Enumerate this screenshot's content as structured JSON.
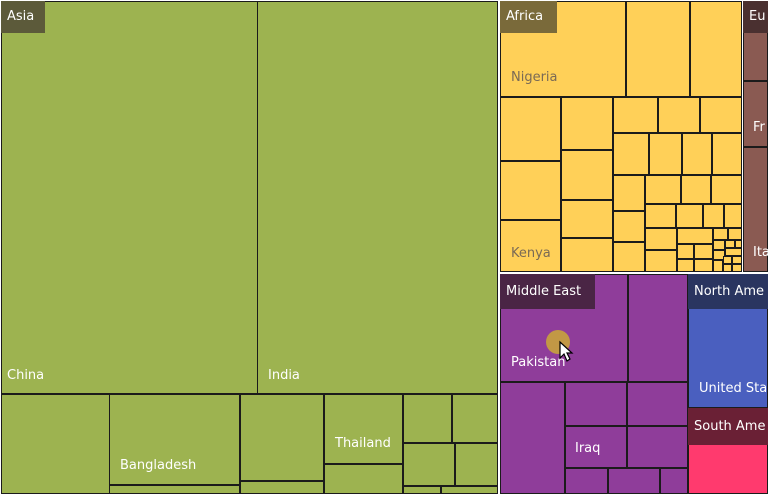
{
  "chart_data": {
    "type": "treemap",
    "colors": {
      "Asia": "#9db350",
      "Africa": "#ffd058",
      "Europe": "#8a5a52",
      "Middle East": "#8f3d9a",
      "North America": "#4a5fbf",
      "South America": "#ff3a6e"
    },
    "header_colors": {
      "Asia": "#5c5a3a",
      "Africa": "#7a6a3a",
      "Europe": "#4a3030",
      "Middle East": "#4a2545",
      "North America": "#2a3560",
      "South America": "#6a2035"
    },
    "groups": [
      {
        "name": "Asia",
        "label": "Asia",
        "items": [
          {
            "label": "China"
          },
          {
            "label": "India"
          },
          {
            "label": ""
          },
          {
            "label": "Bangladesh"
          },
          {
            "label": ""
          },
          {
            "label": "Thailand"
          },
          {
            "label": ""
          },
          {
            "label": ""
          },
          {
            "label": ""
          },
          {
            "label": ""
          },
          {
            "label": ""
          },
          {
            "label": ""
          },
          {
            "label": ""
          },
          {
            "label": ""
          },
          {
            "label": ""
          }
        ]
      },
      {
        "name": "Africa",
        "label": "Africa",
        "items": [
          {
            "label": "Nigeria"
          },
          {
            "label": ""
          },
          {
            "label": ""
          },
          {
            "label": "Kenya"
          },
          {
            "label": ""
          },
          {
            "label": ""
          },
          {
            "label": ""
          },
          {
            "label": ""
          }
        ]
      },
      {
        "name": "Europe",
        "label": "Eu",
        "items": [
          {
            "label": ""
          },
          {
            "label": "Fr"
          },
          {
            "label": "Ita"
          }
        ]
      },
      {
        "name": "Middle East",
        "label": "Middle East",
        "items": [
          {
            "label": "Pakistan"
          },
          {
            "label": ""
          },
          {
            "label": ""
          },
          {
            "label": ""
          },
          {
            "label": "Iraq"
          },
          {
            "label": ""
          },
          {
            "label": ""
          },
          {
            "label": ""
          }
        ]
      },
      {
        "name": "North America",
        "label": "North Ame",
        "items": [
          {
            "label": "United Sta"
          }
        ]
      },
      {
        "name": "South America",
        "label": "South Ame",
        "items": [
          {
            "label": ""
          }
        ]
      }
    ]
  }
}
